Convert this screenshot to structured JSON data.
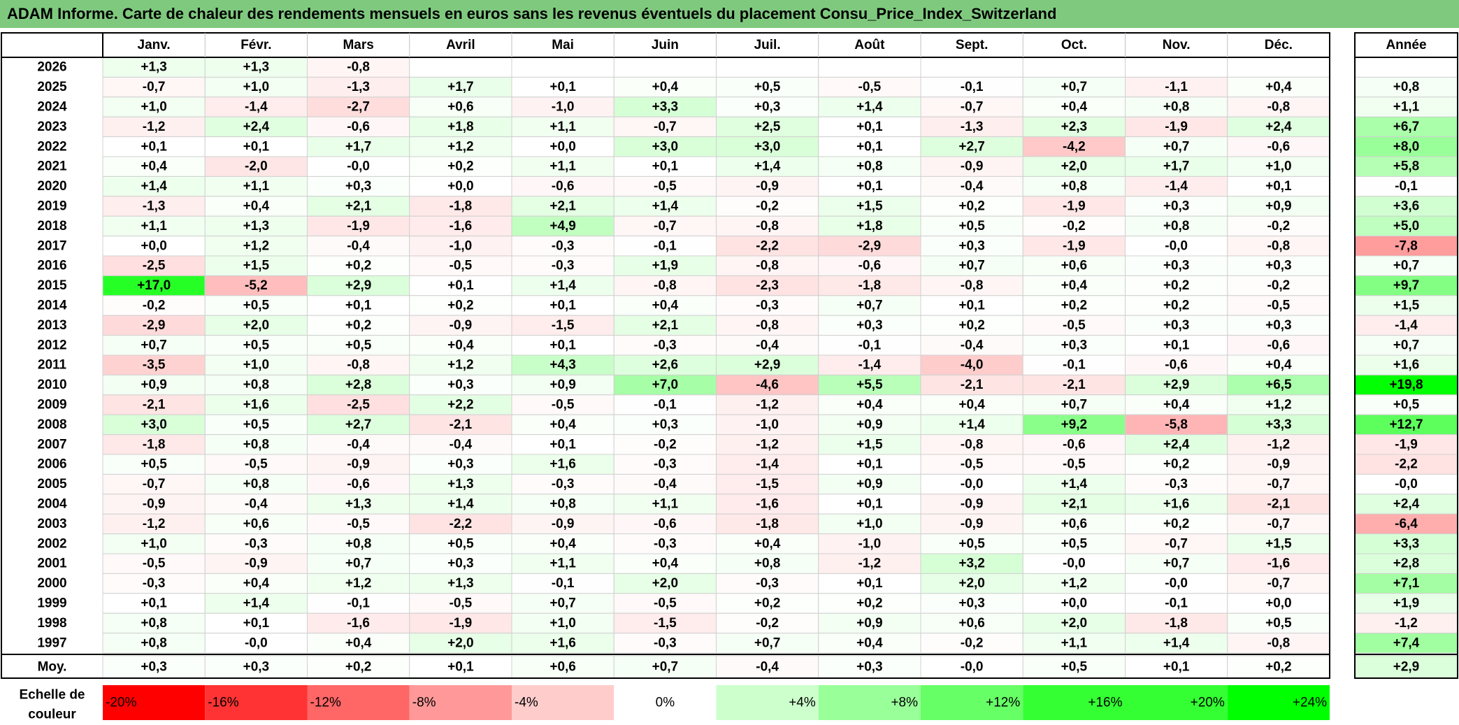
{
  "title": "ADAM Informe. Carte de chaleur des rendements mensuels en euros sans les revenus éventuels du placement Consu_Price_Index_Switzerland",
  "chart_data": {
    "type": "heatmap",
    "title": "ADAM Informe. Carte de chaleur des rendements mensuels en euros sans les revenus éventuels du placement Consu_Price_Index_Switzerland",
    "months": [
      "Janv.",
      "Févr.",
      "Mars",
      "Avril",
      "Mai",
      "Juin",
      "Juil.",
      "Août",
      "Sept.",
      "Oct.",
      "Nov.",
      "Déc."
    ],
    "year_header": "Année",
    "rows": [
      {
        "year": "2026",
        "values": [
          1.3,
          1.3,
          -0.8,
          null,
          null,
          null,
          null,
          null,
          null,
          null,
          null,
          null
        ],
        "annual": null
      },
      {
        "year": "2025",
        "values": [
          -0.7,
          1.0,
          -1.3,
          1.7,
          0.1,
          0.4,
          0.5,
          -0.5,
          -0.1,
          0.7,
          -1.1,
          0.4
        ],
        "annual": 0.8
      },
      {
        "year": "2024",
        "values": [
          1.0,
          -1.4,
          -2.7,
          0.6,
          -1.0,
          3.3,
          0.3,
          1.4,
          -0.7,
          0.4,
          0.8,
          -0.8
        ],
        "annual": 1.1
      },
      {
        "year": "2023",
        "values": [
          -1.2,
          2.4,
          -0.6,
          1.8,
          1.1,
          -0.7,
          2.5,
          0.1,
          -1.3,
          2.3,
          -1.9,
          2.4
        ],
        "annual": 6.7
      },
      {
        "year": "2022",
        "values": [
          0.1,
          0.1,
          1.7,
          1.2,
          0.0,
          3.0,
          3.0,
          0.1,
          2.7,
          -4.2,
          0.7,
          -0.6
        ],
        "annual": 8.0
      },
      {
        "year": "2021",
        "values": [
          0.4,
          -2.0,
          -0.0,
          0.2,
          1.1,
          0.1,
          1.4,
          0.8,
          -0.9,
          2.0,
          1.7,
          1.0
        ],
        "annual": 5.8
      },
      {
        "year": "2020",
        "values": [
          1.4,
          1.1,
          0.3,
          0.0,
          -0.6,
          -0.5,
          -0.9,
          0.1,
          -0.4,
          0.8,
          -1.4,
          0.1
        ],
        "annual": -0.1
      },
      {
        "year": "2019",
        "values": [
          -1.3,
          0.4,
          2.1,
          -1.8,
          2.1,
          1.4,
          -0.2,
          1.5,
          0.2,
          -1.9,
          0.3,
          0.9
        ],
        "annual": 3.6
      },
      {
        "year": "2018",
        "values": [
          1.1,
          1.3,
          -1.9,
          -1.6,
          4.9,
          -0.7,
          -0.8,
          1.8,
          0.5,
          -0.2,
          0.8,
          -0.2
        ],
        "annual": 5.0
      },
      {
        "year": "2017",
        "values": [
          0.0,
          1.2,
          -0.4,
          -1.0,
          -0.3,
          -0.1,
          -2.2,
          -2.9,
          0.3,
          -1.9,
          -0.0,
          -0.8
        ],
        "annual": -7.8
      },
      {
        "year": "2016",
        "values": [
          -2.5,
          1.5,
          0.2,
          -0.5,
          -0.3,
          1.9,
          -0.8,
          -0.6,
          0.7,
          0.6,
          0.3,
          0.3
        ],
        "annual": 0.7
      },
      {
        "year": "2015",
        "values": [
          17.0,
          -5.2,
          2.9,
          0.1,
          1.4,
          -0.8,
          -2.3,
          -1.8,
          -0.8,
          0.4,
          0.2,
          -0.2
        ],
        "annual": 9.7
      },
      {
        "year": "2014",
        "values": [
          -0.2,
          0.5,
          0.1,
          0.2,
          0.1,
          0.4,
          -0.3,
          0.7,
          0.1,
          0.2,
          0.2,
          -0.5
        ],
        "annual": 1.5
      },
      {
        "year": "2013",
        "values": [
          -2.9,
          2.0,
          0.2,
          -0.9,
          -1.5,
          2.1,
          -0.8,
          0.3,
          0.2,
          -0.5,
          0.3,
          0.3
        ],
        "annual": -1.4
      },
      {
        "year": "2012",
        "values": [
          0.7,
          0.5,
          0.5,
          0.4,
          0.1,
          -0.3,
          -0.4,
          -0.1,
          -0.4,
          0.3,
          0.1,
          -0.6
        ],
        "annual": 0.7
      },
      {
        "year": "2011",
        "values": [
          -3.5,
          1.0,
          -0.8,
          1.2,
          4.3,
          2.6,
          2.9,
          -1.4,
          -4.0,
          -0.1,
          -0.6,
          0.4
        ],
        "annual": 1.6
      },
      {
        "year": "2010",
        "values": [
          0.9,
          0.8,
          2.8,
          0.3,
          0.9,
          7.0,
          -4.6,
          5.5,
          -2.1,
          -2.1,
          2.9,
          6.5
        ],
        "annual": 19.8
      },
      {
        "year": "2009",
        "values": [
          -2.1,
          1.6,
          -2.5,
          2.2,
          -0.5,
          -0.1,
          -1.2,
          0.4,
          0.4,
          0.7,
          0.4,
          1.2
        ],
        "annual": 0.5
      },
      {
        "year": "2008",
        "values": [
          3.0,
          0.5,
          2.7,
          -2.1,
          0.4,
          0.3,
          -1.0,
          0.9,
          1.4,
          9.2,
          -5.8,
          3.3
        ],
        "annual": 12.7
      },
      {
        "year": "2007",
        "values": [
          -1.8,
          0.8,
          -0.4,
          -0.4,
          0.1,
          -0.2,
          -1.2,
          1.5,
          -0.8,
          -0.6,
          2.4,
          -1.2
        ],
        "annual": -1.9
      },
      {
        "year": "2006",
        "values": [
          0.5,
          -0.5,
          -0.9,
          0.3,
          1.6,
          -0.3,
          -1.4,
          0.1,
          -0.5,
          -0.5,
          0.2,
          -0.9
        ],
        "annual": -2.2
      },
      {
        "year": "2005",
        "values": [
          -0.7,
          0.8,
          -0.6,
          1.3,
          -0.3,
          -0.4,
          -1.5,
          0.9,
          -0.0,
          1.4,
          -0.3,
          -0.7
        ],
        "annual": -0.0
      },
      {
        "year": "2004",
        "values": [
          -0.9,
          -0.4,
          1.3,
          1.4,
          0.8,
          1.1,
          -1.6,
          0.1,
          -0.9,
          2.1,
          1.6,
          -2.1
        ],
        "annual": 2.4
      },
      {
        "year": "2003",
        "values": [
          -1.2,
          0.6,
          -0.5,
          -2.2,
          -0.9,
          -0.6,
          -1.8,
          1.0,
          -0.9,
          0.6,
          0.2,
          -0.7
        ],
        "annual": -6.4
      },
      {
        "year": "2002",
        "values": [
          1.0,
          -0.3,
          0.8,
          0.5,
          0.4,
          -0.3,
          0.4,
          -1.0,
          0.5,
          0.5,
          -0.7,
          1.5
        ],
        "annual": 3.3
      },
      {
        "year": "2001",
        "values": [
          -0.5,
          -0.9,
          0.7,
          0.3,
          1.1,
          0.4,
          0.8,
          -1.2,
          3.2,
          -0.0,
          0.7,
          -1.6
        ],
        "annual": 2.8
      },
      {
        "year": "2000",
        "values": [
          -0.3,
          0.4,
          1.2,
          1.3,
          -0.1,
          2.0,
          -0.3,
          0.1,
          2.0,
          1.2,
          -0.0,
          -0.7
        ],
        "annual": 7.1
      },
      {
        "year": "1999",
        "values": [
          0.1,
          1.4,
          -0.1,
          -0.5,
          0.7,
          -0.5,
          0.2,
          0.2,
          0.3,
          0.0,
          -0.1,
          0.0
        ],
        "annual": 1.9
      },
      {
        "year": "1998",
        "values": [
          0.8,
          0.1,
          -1.6,
          -1.9,
          1.0,
          -1.5,
          -0.2,
          0.9,
          0.6,
          2.0,
          -1.8,
          0.5
        ],
        "annual": -1.2
      },
      {
        "year": "1997",
        "values": [
          0.8,
          -0.0,
          0.4,
          2.0,
          1.6,
          -0.3,
          0.7,
          0.4,
          -0.2,
          1.1,
          1.4,
          -0.8
        ],
        "annual": 7.4
      }
    ],
    "average": {
      "label": "Moy.",
      "values": [
        0.3,
        0.3,
        0.2,
        0.1,
        0.6,
        0.7,
        -0.4,
        0.3,
        -0.0,
        0.5,
        0.1,
        0.2
      ],
      "annual": 2.9
    },
    "scale": {
      "label_line1": "Echelle de",
      "label_line2": "couleur",
      "labels": [
        "-20%",
        "-16%",
        "-12%",
        "-8%",
        "-4%",
        "0%",
        "+4%",
        "+8%",
        "+12%",
        "+16%",
        "+20%",
        "+24%"
      ],
      "colors": [
        "#ff0000",
        "#ff3333",
        "#ff6666",
        "#ff9999",
        "#ffcccc",
        "#ffffff",
        "#ccffcc",
        "#99ff99",
        "#66ff66",
        "#33ff33",
        "#33ff33",
        "#00ff00"
      ]
    }
  }
}
